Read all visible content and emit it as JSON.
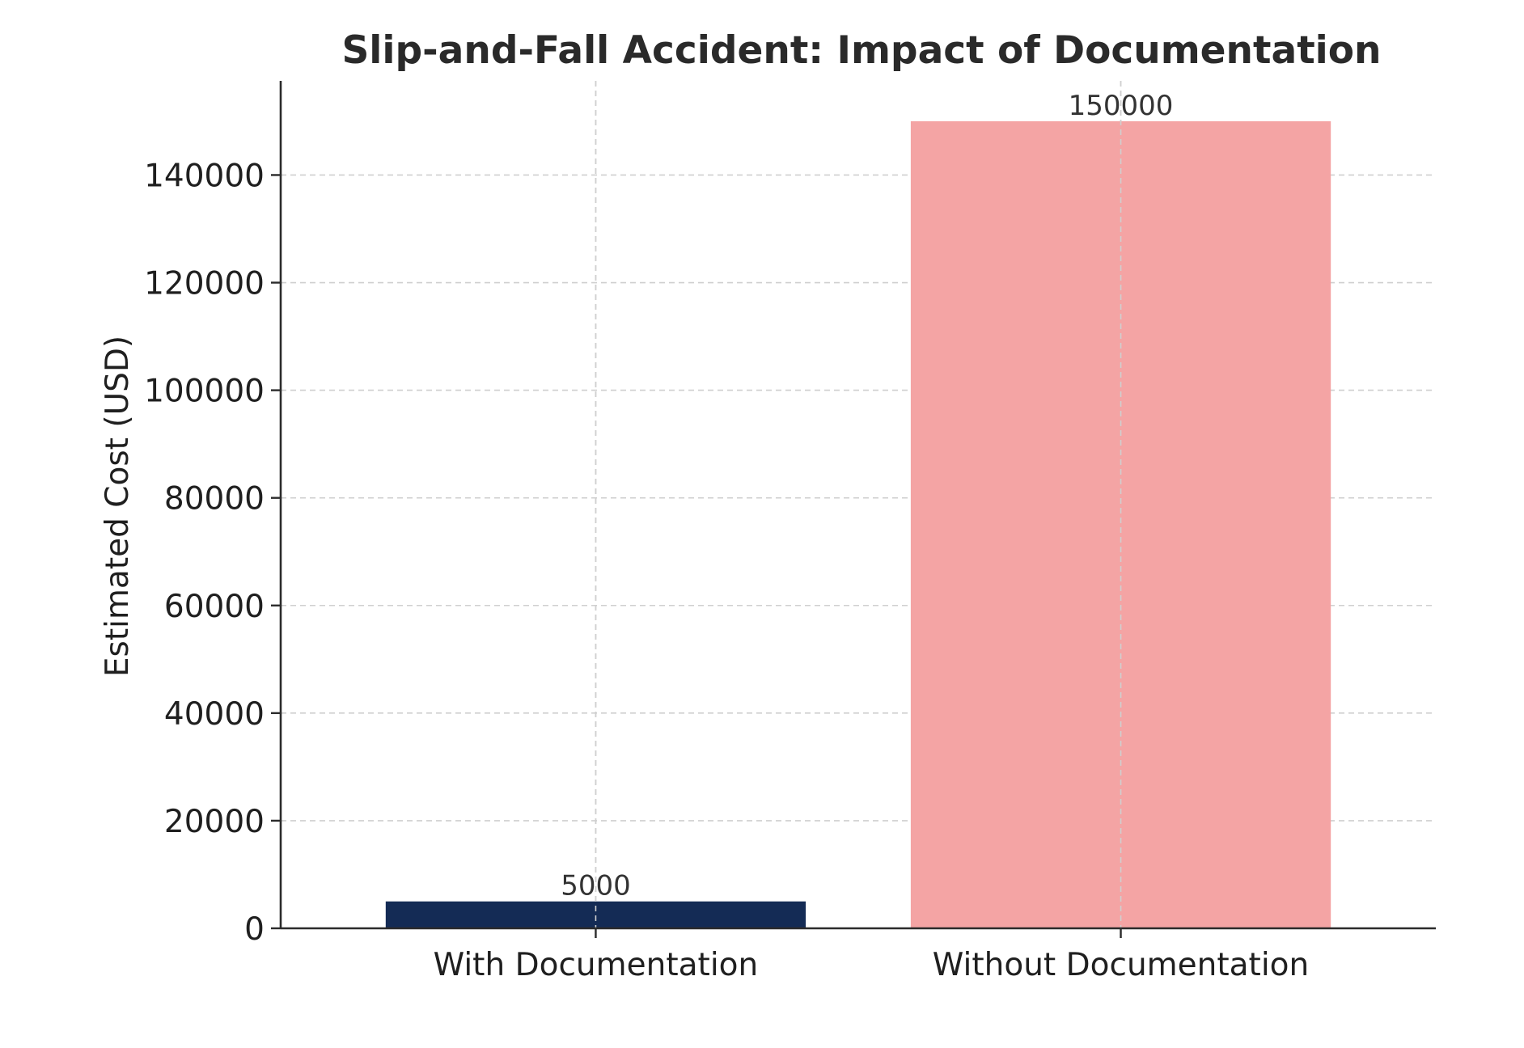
{
  "chart_data": {
    "type": "bar",
    "title": "Slip-and-Fall Accident: Impact of Documentation",
    "xlabel": "",
    "ylabel": "Estimated Cost (USD)",
    "categories": [
      "With Documentation",
      "Without Documentation"
    ],
    "values": [
      5000,
      150000
    ],
    "data_labels": [
      "5000",
      "150000"
    ],
    "bar_colors": [
      "#142b55",
      "#f4a4a4"
    ],
    "ylim": [
      0,
      157500
    ],
    "yticks": [
      0,
      20000,
      40000,
      60000,
      80000,
      100000,
      120000,
      140000
    ],
    "ytick_labels": [
      "0",
      "20000",
      "40000",
      "60000",
      "80000",
      "100000",
      "120000",
      "140000"
    ],
    "grid": true,
    "grid_style": "dashed",
    "legend": false
  }
}
